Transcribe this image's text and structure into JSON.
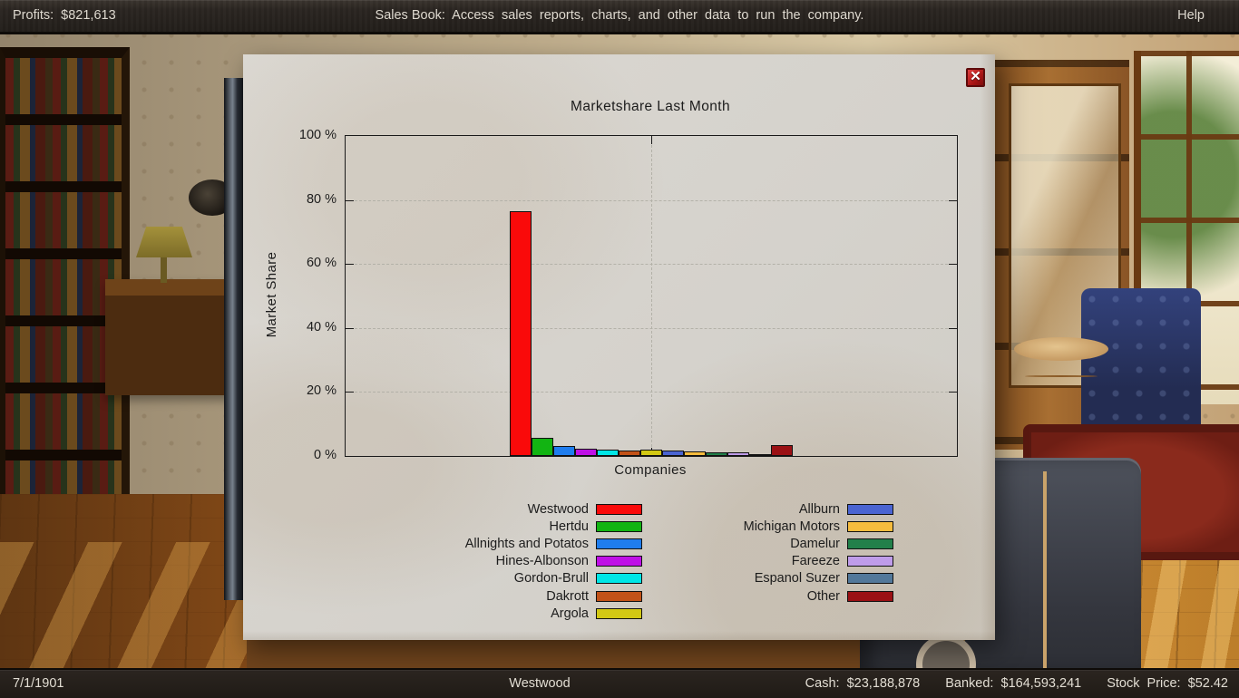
{
  "top_bar": {
    "profits": "Profits:  $821,613",
    "message": "Sales Book:  Access  sales  reports,  charts,  and  other  data  to  run  the  company.",
    "help": "Help"
  },
  "icons": {
    "close": "✕"
  },
  "chart_data": {
    "type": "bar",
    "title": "Marketshare Last Month",
    "xlabel": "Companies",
    "ylabel": "Market Share",
    "ylim": [
      0,
      100
    ],
    "yticks": [
      0,
      20,
      40,
      60,
      80,
      100
    ],
    "ytick_suffix": " %",
    "grid": "dashed horizontal lines every 20% plus dashed vertical center line",
    "legend_position": "below plot, two columns",
    "categories": [
      "Westwood",
      "Hertdu",
      "Allnights and Potatos",
      "Hines-Albonson",
      "Gordon-Brull",
      "Dakrott",
      "Argola",
      "Allburn",
      "Michigan Motors",
      "Damelur",
      "Fareeze",
      "Espanol Suzer",
      "Other"
    ],
    "values": [
      76.5,
      5.8,
      3.2,
      2.2,
      1.9,
      1.8,
      2.0,
      1.6,
      1.4,
      1.1,
      1.2,
      0.7,
      3.4
    ],
    "colors": [
      "#fa0a0a",
      "#12b412",
      "#1f7dee",
      "#bf10e6",
      "#00e6e6",
      "#c25218",
      "#d2c814",
      "#4a64d2",
      "#f6bc3e",
      "#22804a",
      "#bf9cea",
      "#52789a",
      "#9a1014"
    ]
  },
  "status_bar": {
    "date": "7/1/1901",
    "company": "Westwood",
    "cash": "Cash:  $23,188,878",
    "banked": "Banked:  $164,593,241",
    "stock_price": "Stock  Price:  $52.42"
  }
}
